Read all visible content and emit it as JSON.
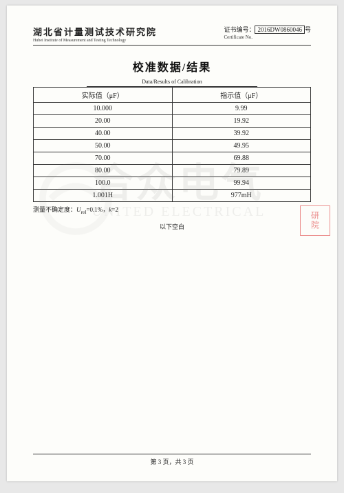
{
  "header": {
    "institute_cn": "湖北省计量测试技术研究院",
    "institute_en": "Hubei Institute of Measurement and Testing Technology",
    "cert_label": "证书编号：",
    "cert_no": "2016DW0860046",
    "cert_suffix": "号",
    "cert_sub": "Certificate No."
  },
  "title": {
    "cn": "校准数据/结果",
    "en": "Data/Results of Calibration"
  },
  "table": {
    "col1_header": "实际值（μF）",
    "col2_header": "指示值（μF）",
    "rows": [
      {
        "actual": "10.000",
        "indicated": "9.99"
      },
      {
        "actual": "20.00",
        "indicated": "19.92"
      },
      {
        "actual": "40.00",
        "indicated": "39.92"
      },
      {
        "actual": "50.00",
        "indicated": "49.95"
      },
      {
        "actual": "70.00",
        "indicated": "69.88"
      },
      {
        "actual": "80.00",
        "indicated": "79.89"
      },
      {
        "actual": "100.0",
        "indicated": "99.94"
      },
      {
        "actual": "1.001H",
        "indicated": "977mH"
      }
    ]
  },
  "uncertainty": {
    "label": "测量不确定度：",
    "urel_label": "U",
    "urel_sub": "rel",
    "urel_value": "=0.1%，",
    "k_label": "k",
    "k_value": "=2"
  },
  "blank_below": "以下空白",
  "watermark": {
    "cn": "合众电气",
    "en": "UNITED ELECTRICAL"
  },
  "stamp": "研院",
  "footer": "第 3 页，共 3 页",
  "colors": {
    "page_bg": "#fdfdfa",
    "body_bg": "#e8e8e8",
    "text": "#222222",
    "border": "#333333",
    "stamp": "#d33333",
    "watermark": "#888888"
  }
}
